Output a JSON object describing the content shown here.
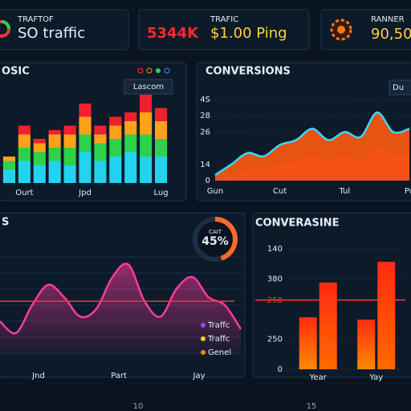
{
  "kpis": [
    {
      "label": "TRAFTOF",
      "value": "SO traffic"
    },
    {
      "big": "5344K",
      "label": "TRAFIC",
      "value": "$1.00 Ping"
    },
    {
      "label": "RANNER",
      "value": "90,50"
    }
  ],
  "chart_data": [
    {
      "type": "stacked-bar",
      "title": "OSIC",
      "legend": "Lascom",
      "categories": [
        null,
        "Ourt",
        null,
        null,
        null,
        "Jpd",
        null,
        null,
        null,
        null,
        "Lug"
      ],
      "ylim": [
        0,
        100
      ],
      "series": [
        {
          "color": "#22d3f0",
          "values": [
            15,
            25,
            20,
            25,
            20,
            35,
            25,
            30,
            35,
            30,
            30
          ]
        },
        {
          "color": "#2ed14a",
          "values": [
            10,
            15,
            15,
            15,
            20,
            20,
            20,
            20,
            20,
            25,
            20
          ]
        },
        {
          "color": "#ffa21a",
          "values": [
            5,
            15,
            10,
            15,
            15,
            20,
            10,
            15,
            15,
            25,
            20
          ]
        },
        {
          "color": "#f0202e",
          "values": [
            0,
            10,
            5,
            5,
            10,
            15,
            10,
            10,
            10,
            20,
            15
          ]
        }
      ]
    },
    {
      "type": "area",
      "title": "CONVERSIONS",
      "legend": "Du",
      "categories": [
        "Gun",
        null,
        null,
        null,
        "Cut",
        null,
        null,
        null,
        "Tul",
        null,
        null,
        null,
        "Pu"
      ],
      "ylim": [
        0,
        50
      ],
      "yticks": [
        {
          "value": 50,
          "label": "4S"
        },
        {
          "value": 40,
          "label": "28"
        },
        {
          "value": 30,
          "label": "26"
        },
        {
          "value": 10,
          "label": "14"
        },
        0
      ],
      "series": [
        {
          "color": "#b0105e",
          "values": [
            1,
            2.5,
            6.4,
            7.4,
            10,
            12,
            15,
            12,
            15,
            12,
            20,
            15,
            17
          ]
        },
        {
          "color": "#ff5a10",
          "line_color": "#38d8ff",
          "values": [
            3.5,
            10,
            17,
            15,
            22,
            25,
            32,
            25,
            30,
            27,
            42,
            30,
            32
          ]
        }
      ]
    },
    {
      "type": "line",
      "title": "S",
      "categories": [
        null,
        null,
        "Jnd",
        null,
        null,
        null,
        null,
        "Part",
        null,
        null,
        null,
        null,
        "Jay",
        null,
        null,
        null
      ],
      "ylim": [
        0,
        100
      ],
      "series": [
        {
          "color": "#ff3aa0",
          "values": [
            33,
            21,
            50,
            71,
            58,
            38,
            46,
            79,
            92,
            54,
            38,
            67,
            79,
            58,
            50,
            25
          ]
        }
      ],
      "reference_line": {
        "value": 54,
        "color": "#ff3030"
      },
      "legend": [
        {
          "name": "Traffc",
          "color": "#a040ff"
        },
        {
          "name": "Traffc",
          "color": "#ffcc00"
        },
        {
          "name": "Genel",
          "color": "#ff8a00"
        }
      ],
      "donut": {
        "label": "CAIT",
        "value": 45,
        "value_label": "45%"
      }
    },
    {
      "type": "grouped-bar",
      "title": "CONVERASINE",
      "categories": [
        "Year",
        "Yay"
      ],
      "ylim": [
        0,
        4
      ],
      "yticks": [
        {
          "value": 4,
          "label": "140"
        },
        {
          "value": 3,
          "label": "380"
        },
        {
          "value": 1,
          "label": "250"
        },
        0
      ],
      "threshold": {
        "value": 2.3,
        "label": "258",
        "color": "#ff3030"
      },
      "series": [
        {
          "color": "#ff8a00",
          "values": [
            1.73,
            1.65
          ]
        },
        {
          "color": "#ff6a00",
          "values": [
            2.88,
            3.57
          ]
        }
      ]
    }
  ],
  "footer_labels": [
    10,
    15
  ]
}
